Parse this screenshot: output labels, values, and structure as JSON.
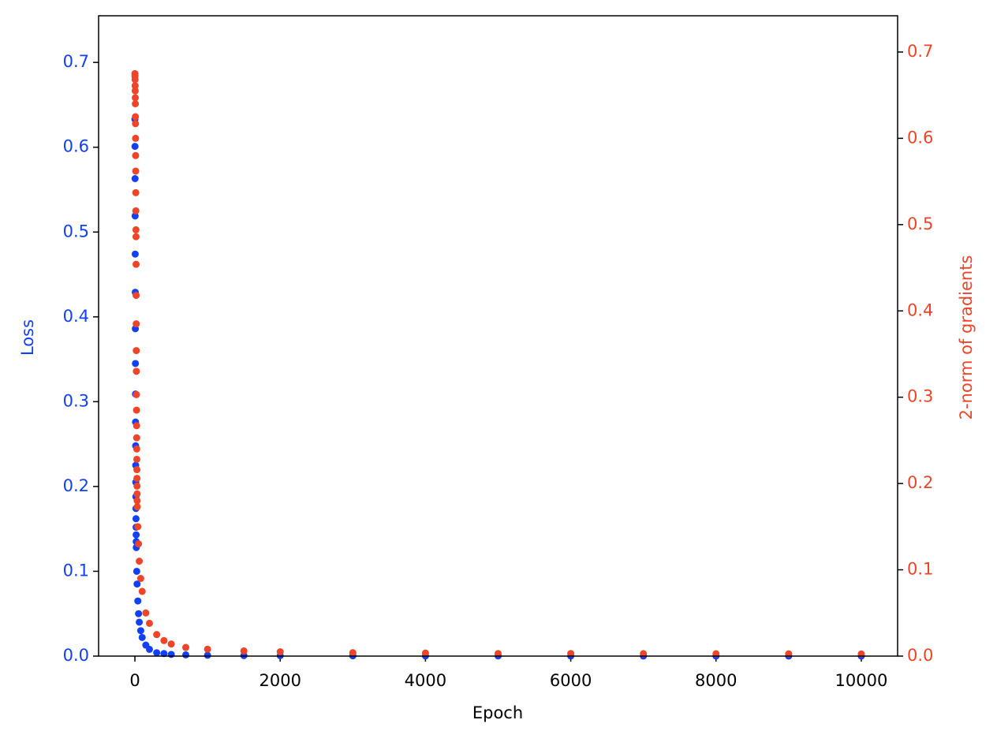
{
  "chart_data": {
    "type": "scatter",
    "xlabel": "Epoch",
    "ylabel": "Loss",
    "y2label": "2-norm of gradients",
    "xlim": [
      -500,
      10500
    ],
    "ylim": [
      0,
      0.755
    ],
    "y2lim": [
      0,
      0.742
    ],
    "xticks": [
      0,
      2000,
      4000,
      6000,
      8000,
      10000
    ],
    "yticks": [
      {
        "value": 0,
        "label": "0.0"
      },
      0.1,
      0.2,
      0.3,
      0.4,
      0.5,
      0.6,
      0.7
    ],
    "y2ticks": [
      {
        "value": 0,
        "label": "0.0"
      },
      0.1,
      0.2,
      0.3,
      0.4,
      0.5,
      0.6,
      0.7
    ],
    "series": [
      {
        "name": "Loss",
        "color": "#1140f5",
        "axis": "y",
        "x": [
          0,
          1,
          2,
          3,
          4,
          5,
          6,
          7,
          8,
          9,
          10,
          11,
          12,
          13,
          14,
          15,
          16,
          17,
          18,
          19,
          25,
          30,
          40,
          50,
          60,
          80,
          100,
          150,
          200,
          300,
          400,
          500,
          700,
          1000,
          1500,
          2000,
          3000,
          4000,
          5000,
          6000,
          7000,
          8000,
          9000,
          10000
        ],
        "values": [
          0.633,
          0.601,
          0.563,
          0.519,
          0.474,
          0.429,
          0.386,
          0.345,
          0.309,
          0.276,
          0.248,
          0.225,
          0.205,
          0.188,
          0.174,
          0.162,
          0.152,
          0.143,
          0.135,
          0.128,
          0.1,
          0.085,
          0.065,
          0.05,
          0.04,
          0.03,
          0.022,
          0.013,
          0.008,
          0.004,
          0.003,
          0.002,
          0.0015,
          0.001,
          0.0006,
          0.0005,
          0.0003,
          0.0002,
          0.0002,
          0.0001,
          0.0001,
          0.0001,
          0.0001,
          0.0001
        ]
      },
      {
        "name": "2-norm of gradients",
        "color": "#ee4428",
        "axis": "y2",
        "x": [
          0,
          1,
          2,
          3,
          4,
          5,
          6,
          7,
          8,
          9,
          10,
          11,
          12,
          13,
          14,
          15,
          16,
          17,
          18,
          19,
          20,
          21,
          22,
          23,
          24,
          25,
          26,
          27,
          28,
          29,
          30,
          31,
          32,
          40,
          50,
          60,
          80,
          100,
          150,
          200,
          300,
          400,
          500,
          700,
          1000,
          1500,
          2000,
          3000,
          4000,
          5000,
          6000,
          7000,
          8000,
          9000,
          10000
        ],
        "values": [
          0.675,
          0.672,
          0.668,
          0.661,
          0.655,
          0.647,
          0.64,
          0.625,
          0.617,
          0.6,
          0.58,
          0.562,
          0.537,
          0.516,
          0.494,
          0.486,
          0.454,
          0.418,
          0.385,
          0.354,
          0.33,
          0.303,
          0.285,
          0.267,
          0.253,
          0.24,
          0.228,
          0.216,
          0.206,
          0.197,
          0.188,
          0.18,
          0.173,
          0.15,
          0.13,
          0.11,
          0.09,
          0.075,
          0.05,
          0.038,
          0.025,
          0.018,
          0.014,
          0.01,
          0.008,
          0.006,
          0.005,
          0.004,
          0.0035,
          0.003,
          0.003,
          0.0028,
          0.0027,
          0.0026,
          0.0025
        ]
      }
    ]
  }
}
